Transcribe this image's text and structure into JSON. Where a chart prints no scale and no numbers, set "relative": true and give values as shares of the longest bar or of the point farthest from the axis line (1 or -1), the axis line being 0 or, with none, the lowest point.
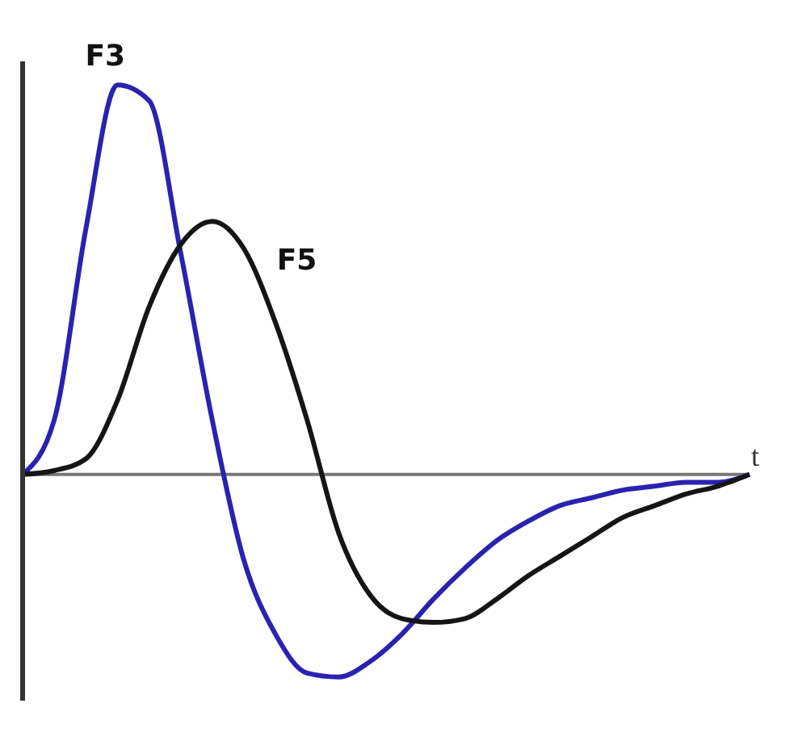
{
  "chart_data": {
    "type": "line",
    "relative": true,
    "xlabel": "t",
    "categories": [
      null,
      null,
      null,
      null,
      null,
      null,
      null,
      null,
      null,
      null,
      null,
      null,
      null,
      null,
      null,
      null,
      null,
      null,
      null,
      null,
      null,
      null,
      null,
      null
    ],
    "marker": "none",
    "grid": false,
    "legend": false,
    "series": [
      {
        "name": "F3",
        "color": "#2a22b0",
        "values": [
          0,
          0.14,
          0.63,
          1,
          0.96,
          0.57,
          0.14,
          -0.22,
          -0.41,
          -0.51,
          -0.52,
          -0.48,
          -0.41,
          -0.32,
          -0.24,
          -0.17,
          -0.12,
          -0.08,
          -0.06,
          -0.04,
          -0.03,
          -0.02,
          -0.02,
          0
        ]
      },
      {
        "name": "F5",
        "color": "#151515",
        "values": [
          0,
          0.01,
          0.04,
          0.19,
          0.43,
          0.59,
          0.65,
          0.58,
          0.39,
          0.14,
          -0.15,
          -0.31,
          -0.37,
          -0.38,
          -0.37,
          -0.32,
          -0.26,
          -0.21,
          -0.16,
          -0.11,
          -0.08,
          -0.05,
          -0.03,
          0
        ]
      }
    ]
  }
}
